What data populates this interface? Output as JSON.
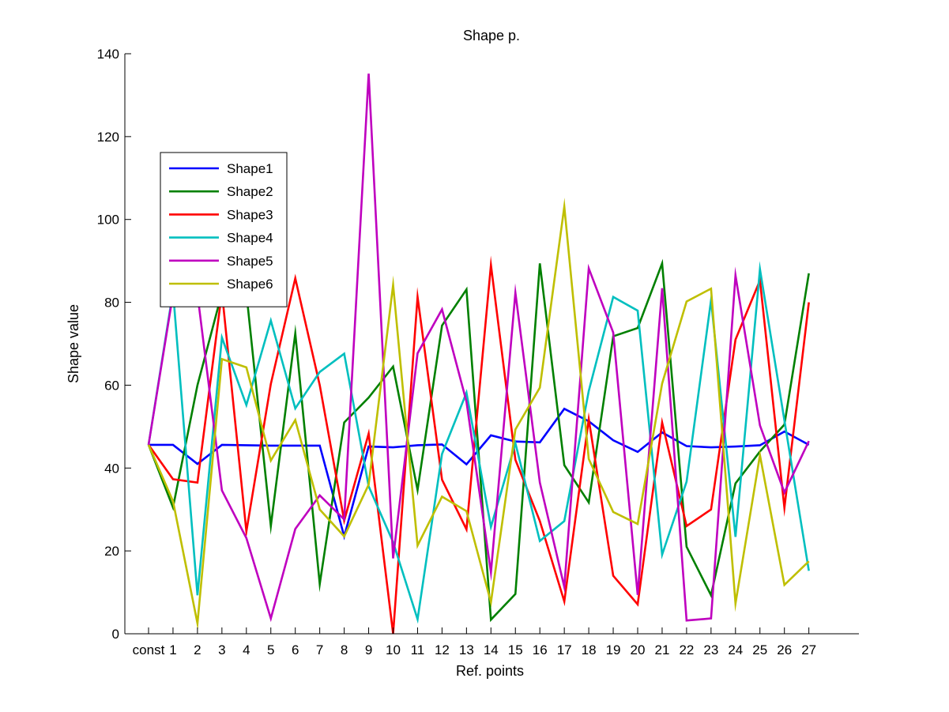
{
  "chart_data": {
    "type": "line",
    "title": "Shape p.",
    "xlabel": "Ref. points",
    "ylabel": "Shape value",
    "categories": [
      "const",
      "1",
      "2",
      "3",
      "4",
      "5",
      "6",
      "7",
      "8",
      "9",
      "10",
      "11",
      "12",
      "13",
      "14",
      "15",
      "16",
      "17",
      "18",
      "19",
      "20",
      "21",
      "22",
      "23",
      "24",
      "25",
      "26",
      "27"
    ],
    "ylim": [
      0,
      140
    ],
    "yticks": [
      0,
      20,
      40,
      60,
      80,
      100,
      120,
      140
    ],
    "grid": false,
    "legend_position": "upper-left",
    "series": [
      {
        "name": "Shape1",
        "color": "#0000ff",
        "values": [
          45.6,
          45.6,
          41,
          45.6,
          45.5,
          45.4,
          45.4,
          45.4,
          23.5,
          45.2,
          45.0,
          45.5,
          45.7,
          40.9,
          47.9,
          46.4,
          46.2,
          54.3,
          51.3,
          46.7,
          43.9,
          48.6,
          45.3,
          45.0,
          45.2,
          45.5,
          48.8,
          45.6
        ]
      },
      {
        "name": "Shape2",
        "color": "#008000",
        "values": [
          45.6,
          30.5,
          60,
          82.3,
          82.3,
          26,
          72.5,
          12,
          51,
          57,
          64.5,
          34.7,
          74.4,
          83.1,
          3.4,
          9.6,
          89.4,
          40.7,
          31.7,
          71.8,
          73.8,
          89.4,
          21,
          9.3,
          36.3,
          44,
          50.5,
          87
        ]
      },
      {
        "name": "Shape3",
        "color": "#ff0000",
        "values": [
          45.6,
          37.3,
          36.5,
          82.5,
          24.7,
          60.3,
          85.8,
          60,
          27.3,
          48.3,
          0,
          81.3,
          37.2,
          25.2,
          89,
          42,
          27.2,
          7.8,
          51.8,
          14,
          7.1,
          51,
          26,
          30,
          71,
          85.3,
          30.4,
          80
        ]
      },
      {
        "name": "Shape4",
        "color": "#00bfbf",
        "values": [
          45.6,
          82.7,
          9.3,
          71.5,
          55.2,
          75.6,
          54.4,
          63.2,
          67.6,
          35.6,
          22.1,
          3.5,
          43.4,
          58.2,
          25.8,
          46,
          22.4,
          27.2,
          58.6,
          81.3,
          78,
          19.1,
          36.7,
          80.5,
          23.4,
          88,
          51.5,
          15.2
        ]
      },
      {
        "name": "Shape5",
        "color": "#bf00bf",
        "values": [
          45.6,
          82,
          82,
          34.6,
          23.1,
          3.7,
          25.3,
          33.4,
          27.6,
          135.2,
          18.2,
          67.7,
          78.3,
          56,
          14.8,
          82.3,
          36.5,
          11.3,
          88.2,
          72.7,
          9.4,
          83.4,
          3.2,
          3.7,
          86.5,
          50.3,
          34.1,
          46.5
        ]
      },
      {
        "name": "Shape6",
        "color": "#bfbf00",
        "values": [
          45.6,
          32,
          2.5,
          66.3,
          64.3,
          41.8,
          51.6,
          30,
          23.5,
          36,
          84.2,
          21.3,
          33.1,
          29.6,
          7.6,
          49.3,
          59.4,
          103.1,
          42.2,
          29.4,
          26.5,
          60.4,
          80.2,
          83.3,
          7.3,
          43.1,
          11.8,
          17.5
        ]
      }
    ]
  }
}
